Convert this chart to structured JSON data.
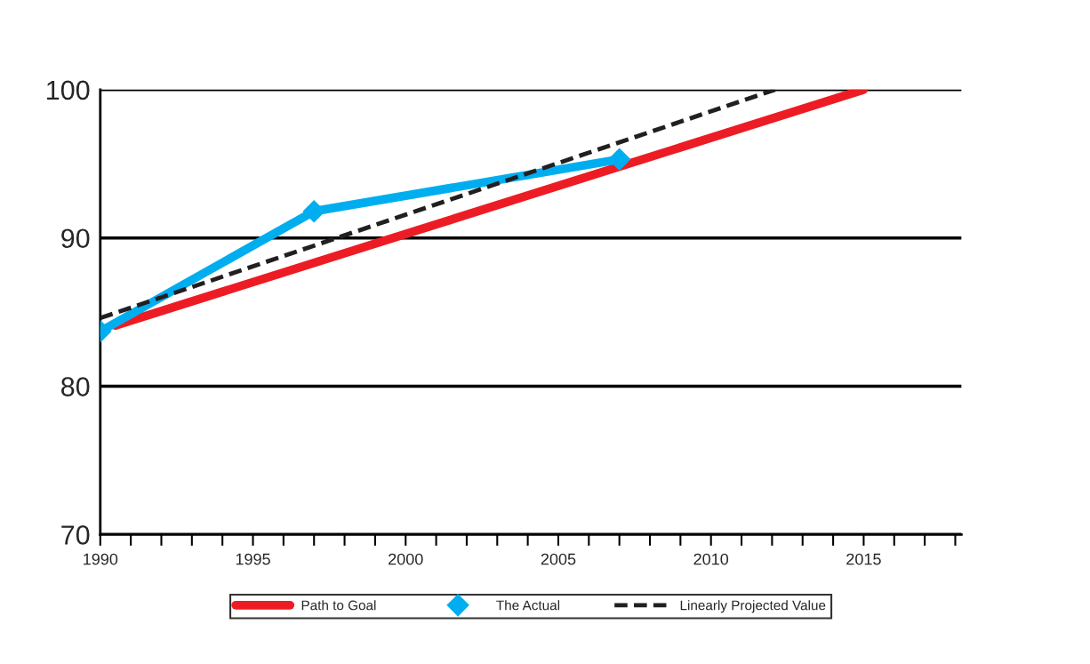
{
  "chart_data": {
    "type": "line",
    "series": [
      {
        "name": "Path to Goal",
        "color": "#ed1c24",
        "x": [
          1990.5,
          2015
        ],
        "values": [
          84.1,
          100
        ],
        "marker": "none",
        "line_style": "solid"
      },
      {
        "name": "The Actual",
        "color": "#00aeef",
        "x": [
          1990,
          1997,
          2007
        ],
        "values": [
          83.7,
          91.8,
          95.3
        ],
        "marker": "diamond",
        "line_style": "solid"
      },
      {
        "name": "Linearly Projected Value",
        "color": "#231f20",
        "x": [
          1990,
          2012.1
        ],
        "values": [
          84.6,
          100
        ],
        "marker": "none",
        "line_style": "dashed"
      }
    ],
    "xlim": [
      1990,
      2018.2
    ],
    "ylim": [
      70,
      100
    ],
    "xticks": [
      {
        "value": 1990,
        "label": "1990"
      },
      {
        "value": 1991,
        "label": null
      },
      {
        "value": 1992,
        "label": null
      },
      {
        "value": 1993,
        "label": null
      },
      {
        "value": 1994,
        "label": null
      },
      {
        "value": 1995,
        "label": "1995"
      },
      {
        "value": 1996,
        "label": null
      },
      {
        "value": 1997,
        "label": null
      },
      {
        "value": 1998,
        "label": null
      },
      {
        "value": 1999,
        "label": null
      },
      {
        "value": 2000,
        "label": "2000"
      },
      {
        "value": 2001,
        "label": null
      },
      {
        "value": 2002,
        "label": null
      },
      {
        "value": 2003,
        "label": null
      },
      {
        "value": 2004,
        "label": null
      },
      {
        "value": 2005,
        "label": "2005"
      },
      {
        "value": 2006,
        "label": null
      },
      {
        "value": 2007,
        "label": null
      },
      {
        "value": 2008,
        "label": null
      },
      {
        "value": 2009,
        "label": null
      },
      {
        "value": 2010,
        "label": "2010"
      },
      {
        "value": 2011,
        "label": null
      },
      {
        "value": 2012,
        "label": null
      },
      {
        "value": 2013,
        "label": null
      },
      {
        "value": 2014,
        "label": null
      },
      {
        "value": 2015,
        "label": "2015"
      },
      {
        "value": 2016,
        "label": null
      },
      {
        "value": 2017,
        "label": null
      },
      {
        "value": 2018,
        "label": null
      }
    ],
    "yticks": [
      70,
      80,
      90,
      100
    ],
    "grid": "y",
    "legend": "bottom"
  }
}
